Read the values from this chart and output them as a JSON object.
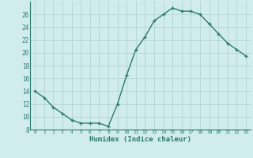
{
  "x": [
    0,
    1,
    2,
    3,
    4,
    5,
    6,
    7,
    8,
    9,
    10,
    11,
    12,
    13,
    14,
    15,
    16,
    17,
    18,
    19,
    20,
    21,
    22,
    23
  ],
  "y": [
    14,
    13,
    11.5,
    10.5,
    9.5,
    9,
    9,
    9,
    8.5,
    12,
    16.5,
    20.5,
    22.5,
    25,
    26,
    27,
    26.5,
    26.5,
    26,
    24.5,
    23,
    21.5,
    20.5,
    19.5
  ],
  "xlabel": "Humidex (Indice chaleur)",
  "ylim": [
    8,
    28
  ],
  "xlim": [
    -0.5,
    23.5
  ],
  "yticks": [
    8,
    10,
    12,
    14,
    16,
    18,
    20,
    22,
    24,
    26
  ],
  "xticks": [
    0,
    1,
    2,
    3,
    4,
    5,
    6,
    7,
    8,
    9,
    10,
    11,
    12,
    13,
    14,
    15,
    16,
    17,
    18,
    19,
    20,
    21,
    22,
    23
  ],
  "line_color": "#2d7a6e",
  "marker": "+",
  "bg_color": "#d0ecec",
  "grid_color": "#b8d8d4"
}
